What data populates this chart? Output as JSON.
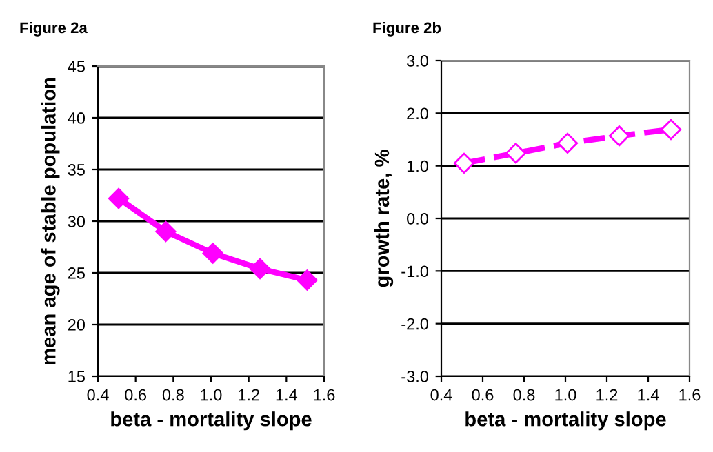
{
  "chart_data": [
    {
      "type": "line",
      "title": "Figure 2a",
      "xlabel": "beta - mortality slope",
      "ylabel": "mean age of stable population",
      "x": [
        0.51,
        0.76,
        1.01,
        1.26,
        1.51
      ],
      "series": [
        {
          "color": "#ff00ff",
          "values": [
            32.2,
            29.0,
            26.9,
            25.4,
            24.3
          ]
        }
      ],
      "xlim": [
        0.4,
        1.6
      ],
      "xticks": [
        0.4,
        0.6,
        0.8,
        {
          "value": 1,
          "label": "1.0"
        },
        1.2,
        1.4,
        1.6
      ],
      "ylim": [
        15,
        45
      ],
      "yticks": [
        15,
        20,
        25,
        30,
        35,
        40,
        45
      ],
      "grid": "y",
      "marker": "diamond",
      "line_style": "solid",
      "legend": false
    },
    {
      "type": "line",
      "title": "Figure 2b",
      "xlabel": "beta - mortality slope",
      "ylabel": "growth rate, %",
      "x": [
        0.51,
        0.76,
        1.01,
        1.26,
        1.51
      ],
      "series": [
        {
          "color": "#ff00ff",
          "values": [
            1.05,
            1.24,
            1.43,
            1.57,
            1.69
          ]
        }
      ],
      "xlim": [
        0.4,
        1.6
      ],
      "xticks": [
        0.4,
        0.6,
        0.8,
        {
          "value": 1,
          "label": "1.0"
        },
        1.2,
        1.4,
        1.6
      ],
      "ylim": [
        -3,
        3
      ],
      "yticks": [
        {
          "value": -3,
          "label": "-3.0"
        },
        {
          "value": -2,
          "label": "-2.0"
        },
        {
          "value": -1,
          "label": "-1.0"
        },
        {
          "value": 0,
          "label": "0.0"
        },
        {
          "value": 1,
          "label": "1.0"
        },
        {
          "value": 2,
          "label": "2.0"
        },
        {
          "value": 3,
          "label": "3.0"
        }
      ],
      "grid": "y",
      "marker": "diamond",
      "line_style": "dashed",
      "legend": false
    }
  ]
}
